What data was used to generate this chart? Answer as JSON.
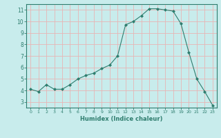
{
  "x": [
    0,
    1,
    2,
    3,
    4,
    5,
    6,
    7,
    8,
    9,
    10,
    11,
    12,
    13,
    14,
    15,
    16,
    17,
    18,
    19,
    20,
    21,
    22,
    23
  ],
  "y": [
    4.1,
    3.9,
    4.5,
    4.1,
    4.1,
    4.5,
    5.0,
    5.3,
    5.5,
    5.9,
    6.2,
    7.0,
    9.7,
    10.0,
    10.5,
    11.1,
    11.1,
    11.0,
    10.9,
    9.8,
    7.3,
    5.0,
    3.9,
    2.7
  ],
  "line_color": "#2e7d6e",
  "marker_color": "#2e7d6e",
  "bg_color": "#c8ecec",
  "grid_color": "#e8b4b4",
  "xlabel": "Humidex (Indice chaleur)",
  "ylim": [
    2.5,
    11.5
  ],
  "xlim": [
    -0.5,
    23.5
  ],
  "yticks": [
    3,
    4,
    5,
    6,
    7,
    8,
    9,
    10,
    11
  ],
  "xticks": [
    0,
    1,
    2,
    3,
    4,
    5,
    6,
    7,
    8,
    9,
    10,
    11,
    12,
    13,
    14,
    15,
    16,
    17,
    18,
    19,
    20,
    21,
    22,
    23
  ]
}
